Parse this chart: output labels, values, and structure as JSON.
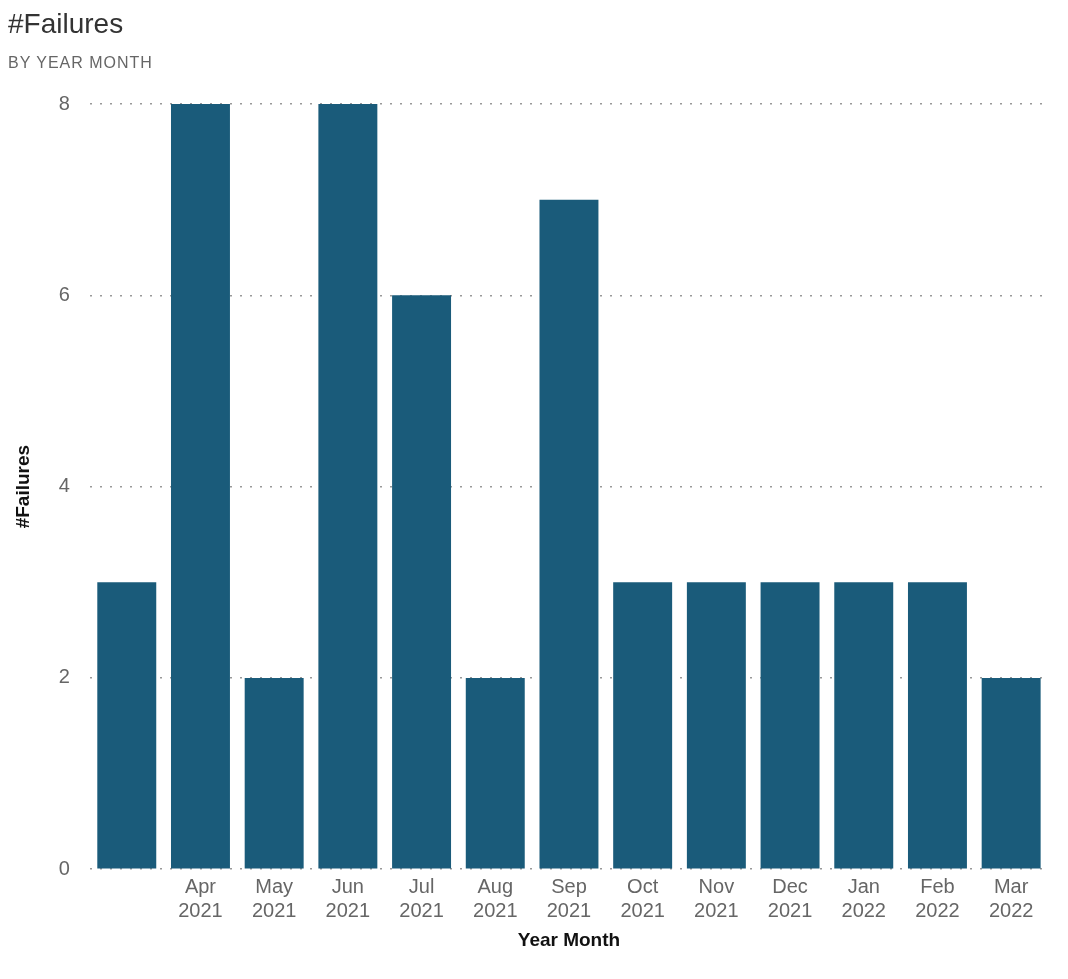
{
  "chart_data": {
    "type": "bar",
    "title": "#Failures",
    "subtitle": "BY YEAR MONTH",
    "xlabel": "Year Month",
    "ylabel": "#Failures",
    "categories": [
      null,
      "Apr 2021",
      "May 2021",
      "Jun 2021",
      "Jul 2021",
      "Aug 2021",
      "Sep 2021",
      "Oct 2021",
      "Nov 2021",
      "Dec 2021",
      "Jan 2022",
      "Feb 2022",
      "Mar 2022"
    ],
    "values": [
      3,
      8,
      2,
      8,
      6,
      2,
      7,
      3,
      3,
      3,
      3,
      3,
      2
    ],
    "color": "#1a5b7a",
    "ylim": [
      0,
      8
    ],
    "yticks": [
      0,
      2,
      4,
      6,
      8
    ],
    "grid": "y"
  }
}
